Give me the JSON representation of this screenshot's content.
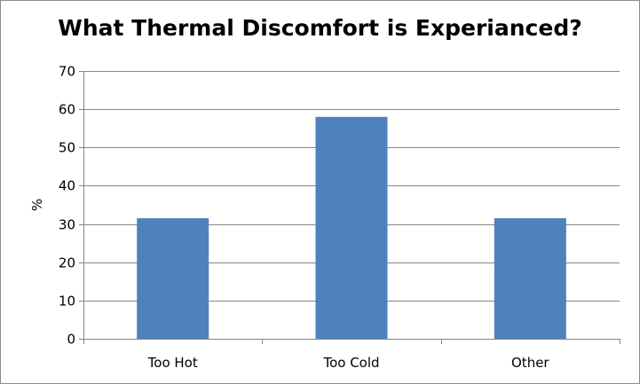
{
  "chart_data": {
    "type": "bar",
    "title": "What Thermal Discomfort is Experianced?",
    "xlabel": "",
    "ylabel": "%",
    "categories": [
      "Too Hot",
      "Too Cold",
      "Other"
    ],
    "values": [
      31.5,
      58,
      31.5
    ],
    "ylim": [
      0,
      70
    ],
    "yticks": [
      0,
      10,
      20,
      30,
      40,
      50,
      60,
      70
    ],
    "grid": true,
    "legend": "none",
    "colors": {
      "bar": "#4f81bd",
      "grid": "#868686",
      "axis": "#868686"
    }
  }
}
